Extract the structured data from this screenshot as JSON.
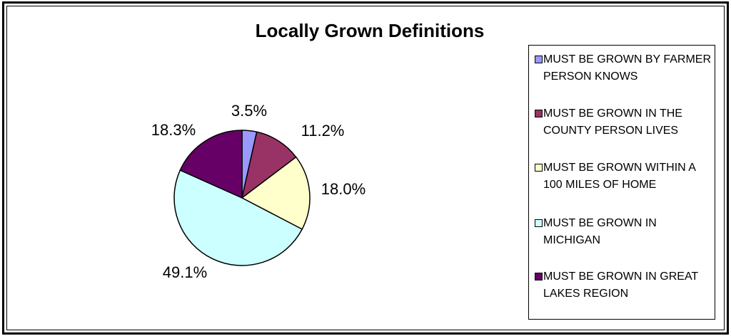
{
  "chart_data": {
    "type": "pie",
    "title": "Locally Grown Definitions",
    "slices": [
      {
        "label": "MUST BE GROWN BY FARMER PERSON KNOWS",
        "value": 3.5,
        "value_label": "3.5%",
        "color": "#9999ff"
      },
      {
        "label": "MUST BE GROWN IN THE COUNTY PERSON LIVES",
        "value": 11.2,
        "value_label": "11.2%",
        "color": "#993366"
      },
      {
        "label": "MUST BE GROWN WITHIN A 100 MILES OF HOME",
        "value": 18.0,
        "value_label": "18.0%",
        "color": "#ffffcc"
      },
      {
        "label": "MUST BE GROWN IN MICHIGAN",
        "value": 49.1,
        "value_label": "49.1%",
        "color": "#ccffff"
      },
      {
        "label": "MUST BE GROWN IN GREAT LAKES REGION",
        "value": 18.3,
        "value_label": "18.3%",
        "color": "#660066"
      }
    ],
    "legend_position": "right"
  }
}
